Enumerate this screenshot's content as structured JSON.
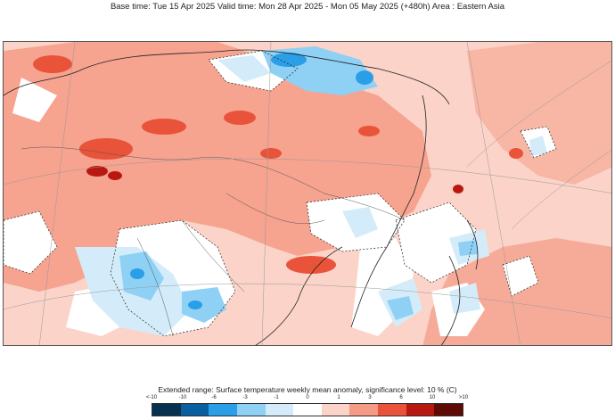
{
  "header": {
    "title": "Base time: Tue 15 Apr 2025 Valid time: Mon 28 Apr 2025 - Mon 05 May 2025 (+480h) Area : Eastern Asia"
  },
  "legend": {
    "title": "Extended range: Surface temperature weekly mean anomaly, significance level: 10 % (C)",
    "ticks": [
      "<-10",
      "-10",
      "-6",
      "-3",
      "-1",
      "0",
      "1",
      "3",
      "6",
      "10",
      ">10"
    ],
    "colors": [
      "#08304f",
      "#0a5fa0",
      "#2a9ee6",
      "#8fd0f5",
      "#d4ecf9",
      "#ffffff",
      "#fbd3c8",
      "#f49a85",
      "#e9533a",
      "#b8180f",
      "#5e0a05"
    ]
  },
  "map": {
    "region": "Eastern Asia",
    "background_color": "#fbd3c8"
  }
}
